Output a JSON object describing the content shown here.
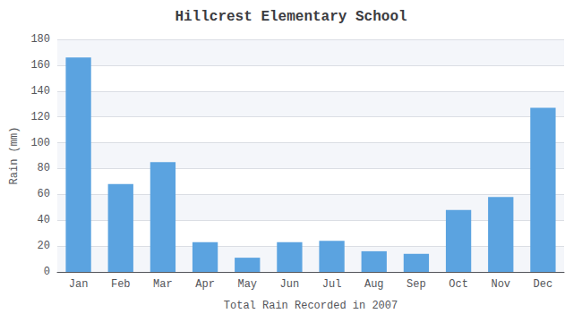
{
  "chart_data": {
    "type": "bar",
    "title": "Hillcrest Elementary School",
    "xlabel": "Total Rain Recorded in 2007",
    "ylabel": "Rain (mm)",
    "categories": [
      "Jan",
      "Feb",
      "Mar",
      "Apr",
      "May",
      "Jun",
      "Jul",
      "Aug",
      "Sep",
      "Oct",
      "Nov",
      "Dec"
    ],
    "values": [
      166,
      68,
      85,
      23,
      11,
      23,
      24,
      16,
      14,
      48,
      58,
      127
    ],
    "color": "#5ba3e0",
    "ylim": [
      0,
      180
    ],
    "yticks": [
      0,
      20,
      40,
      60,
      80,
      100,
      120,
      140,
      160,
      180
    ],
    "grid": true
  }
}
